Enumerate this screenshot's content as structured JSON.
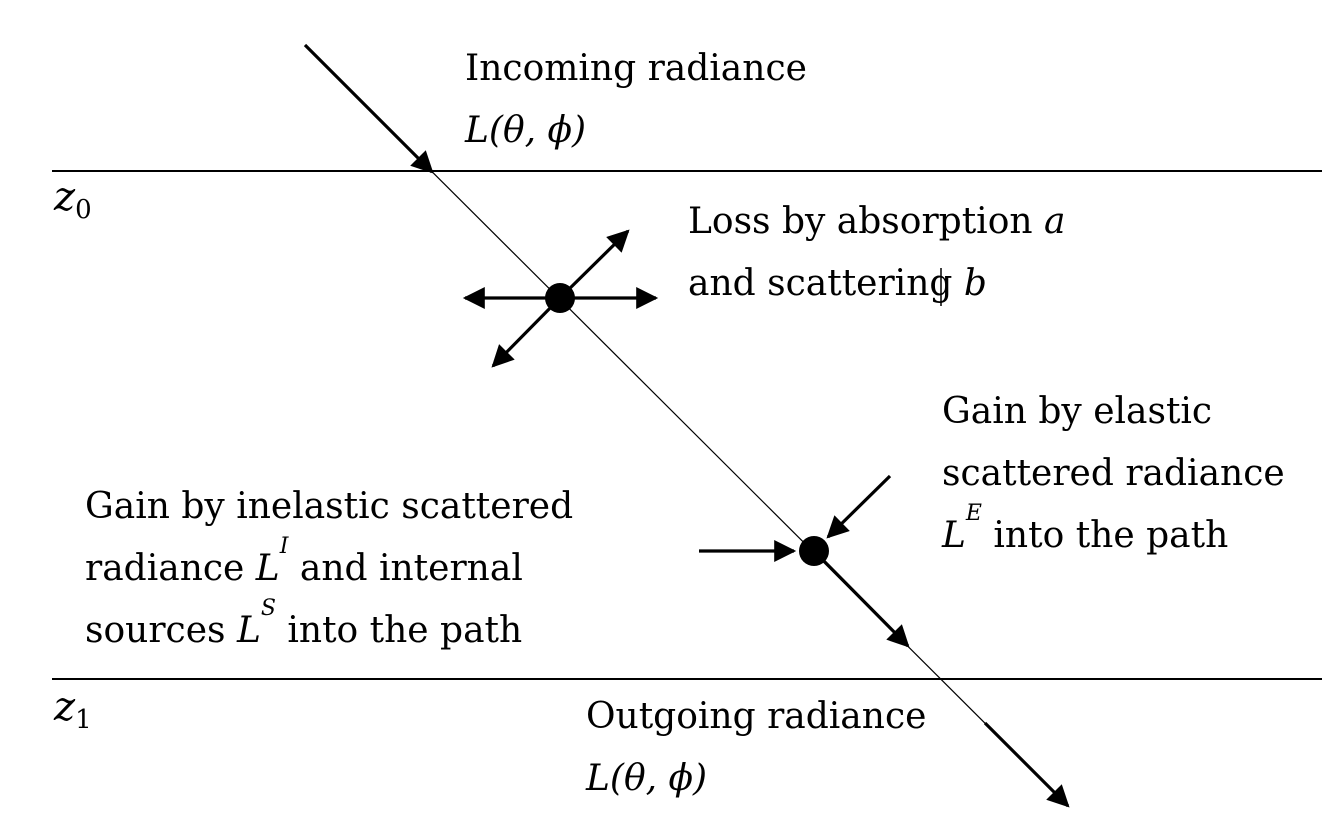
{
  "labels": {
    "incoming_title": "Incoming radiance",
    "incoming_symbol": "L(θ, ϕ)",
    "loss_line1_text": "Loss by absorption",
    "loss_line1_var": "a",
    "loss_line2_text": "and scattering",
    "loss_line2_var": "b",
    "elastic_line1": "Gain by elastic",
    "elastic_line2": "scattered radiance",
    "elastic_symbol": "L",
    "elastic_sup": "E",
    "elastic_line3_rest": " into the path",
    "inelastic_line1": "Gain by inelastic scattered",
    "inelastic_line2_prefix": "radiance ",
    "inelastic_symbol": "L",
    "inelastic_sup": "I",
    "inelastic_line2_rest": " and internal",
    "inelastic_line3_prefix": "sources ",
    "sources_symbol": "L",
    "sources_sup": "S",
    "inelastic_line3_rest": " into the path",
    "outgoing_title": "Outgoing radiance",
    "outgoing_symbol": "L(θ, ϕ)",
    "z0_symbol": "z",
    "z0_sub": "0",
    "z1_symbol": "z",
    "z1_sub": "1"
  },
  "colors": {
    "stroke": "#000000",
    "background": "#ffffff"
  }
}
